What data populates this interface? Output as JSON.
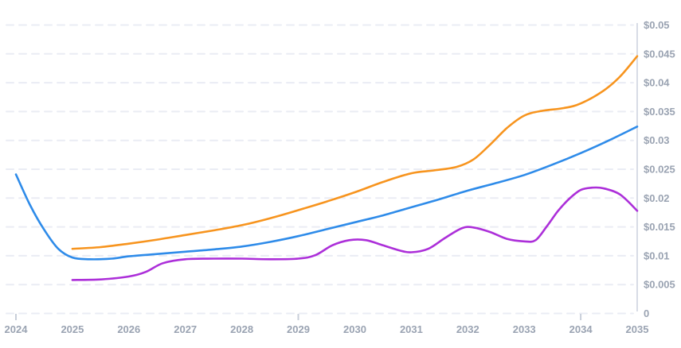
{
  "chart_data": {
    "type": "line",
    "title": "",
    "xlabel": "",
    "ylabel": "",
    "x_axis": {
      "tick_labels": [
        "2024",
        "2025",
        "2026",
        "2027",
        "2028",
        "2029",
        "2030",
        "2031",
        "2032",
        "2033",
        "2034",
        "2035"
      ],
      "tick_values": [
        2024,
        2025,
        2026,
        2027,
        2028,
        2029,
        2030,
        2031,
        2032,
        2033,
        2034,
        2035
      ],
      "major_tick_marks": [
        2024,
        2029,
        2034
      ],
      "range": [
        2024,
        2035
      ]
    },
    "y_axis": {
      "position": "right",
      "tick_labels": [
        "$0.05",
        "$0.045",
        "$0.04",
        "$0.035",
        "$0.03",
        "$0.025",
        "$0.02",
        "$0.015",
        "$0.01",
        "$0.005",
        "0"
      ],
      "tick_values": [
        0.05,
        0.045,
        0.04,
        0.035,
        0.03,
        0.025,
        0.02,
        0.015,
        0.01,
        0.005,
        0
      ],
      "range": [
        0,
        0.05
      ]
    },
    "grid": {
      "horizontal": true,
      "vertical": false,
      "style": "dashed"
    },
    "legend": {
      "visible": false
    },
    "series": [
      {
        "name": "blue-line",
        "color": "#2e8be9",
        "points": [
          [
            2024,
            0.0241
          ],
          [
            2024.25,
            0.0188
          ],
          [
            2024.5,
            0.0145
          ],
          [
            2024.75,
            0.0112
          ],
          [
            2025,
            0.0097
          ],
          [
            2025.3,
            0.0094
          ],
          [
            2025.7,
            0.0095
          ],
          [
            2026,
            0.0099
          ],
          [
            2026.5,
            0.0103
          ],
          [
            2027,
            0.0107
          ],
          [
            2027.5,
            0.0111
          ],
          [
            2028,
            0.0116
          ],
          [
            2028.5,
            0.0124
          ],
          [
            2029,
            0.0134
          ],
          [
            2029.5,
            0.0146
          ],
          [
            2030,
            0.0158
          ],
          [
            2030.5,
            0.017
          ],
          [
            2031,
            0.0184
          ],
          [
            2031.5,
            0.0198
          ],
          [
            2032,
            0.0213
          ],
          [
            2032.5,
            0.0226
          ],
          [
            2033,
            0.024
          ],
          [
            2033.5,
            0.0258
          ],
          [
            2034,
            0.0278
          ],
          [
            2034.5,
            0.03
          ],
          [
            2035,
            0.0324
          ]
        ]
      },
      {
        "name": "orange-line",
        "color": "#f7941e",
        "points": [
          [
            2025,
            0.0112
          ],
          [
            2025.5,
            0.0115
          ],
          [
            2026,
            0.0121
          ],
          [
            2026.5,
            0.0128
          ],
          [
            2027,
            0.0136
          ],
          [
            2027.5,
            0.0144
          ],
          [
            2028,
            0.0153
          ],
          [
            2028.5,
            0.0165
          ],
          [
            2029,
            0.0179
          ],
          [
            2029.5,
            0.0194
          ],
          [
            2030,
            0.021
          ],
          [
            2030.5,
            0.0228
          ],
          [
            2031,
            0.0243
          ],
          [
            2031.4,
            0.0248
          ],
          [
            2031.8,
            0.0254
          ],
          [
            2032.1,
            0.0267
          ],
          [
            2032.4,
            0.0293
          ],
          [
            2032.7,
            0.0322
          ],
          [
            2033,
            0.0343
          ],
          [
            2033.3,
            0.0351
          ],
          [
            2033.7,
            0.0356
          ],
          [
            2034,
            0.0364
          ],
          [
            2034.4,
            0.0386
          ],
          [
            2034.7,
            0.0411
          ],
          [
            2035,
            0.0446
          ]
        ]
      },
      {
        "name": "purple-line",
        "color": "#ac2fd9",
        "points": [
          [
            2025,
            0.0058
          ],
          [
            2025.5,
            0.0059
          ],
          [
            2026,
            0.0064
          ],
          [
            2026.3,
            0.0072
          ],
          [
            2026.6,
            0.0087
          ],
          [
            2027,
            0.0094
          ],
          [
            2027.5,
            0.0095
          ],
          [
            2028,
            0.0095
          ],
          [
            2028.5,
            0.0094
          ],
          [
            2029,
            0.0095
          ],
          [
            2029.3,
            0.0101
          ],
          [
            2029.6,
            0.0118
          ],
          [
            2029.9,
            0.0127
          ],
          [
            2030.2,
            0.0127
          ],
          [
            2030.5,
            0.0118
          ],
          [
            2030.8,
            0.0109
          ],
          [
            2031,
            0.0106
          ],
          [
            2031.3,
            0.0112
          ],
          [
            2031.6,
            0.0131
          ],
          [
            2031.9,
            0.0148
          ],
          [
            2032.1,
            0.0149
          ],
          [
            2032.4,
            0.0141
          ],
          [
            2032.7,
            0.0129
          ],
          [
            2033,
            0.0125
          ],
          [
            2033.2,
            0.0127
          ],
          [
            2033.4,
            0.0151
          ],
          [
            2033.6,
            0.0178
          ],
          [
            2033.8,
            0.0199
          ],
          [
            2034,
            0.0214
          ],
          [
            2034.2,
            0.0218
          ],
          [
            2034.4,
            0.0217
          ],
          [
            2034.7,
            0.0206
          ],
          [
            2035,
            0.0178
          ]
        ]
      }
    ]
  },
  "colors": {
    "background": "#ffffff",
    "grid_line": "#eaecf4",
    "axis_line": "#d8dce6",
    "tick_mark": "#c9cfda",
    "tick_label": "#9aa3b2",
    "series_blue": "#2e8be9",
    "series_orange": "#f7941e",
    "series_purple": "#ac2fd9"
  }
}
